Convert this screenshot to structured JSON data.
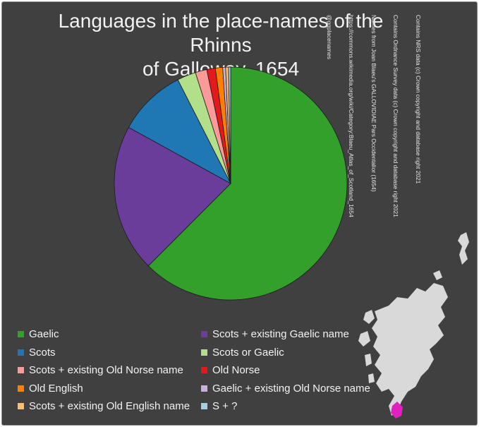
{
  "chart_data": {
    "type": "pie",
    "title": "Languages in the place-names of the Rhinns of Galloway, 1654",
    "start_angle_deg": 0,
    "legend_position": "bottom",
    "series": [
      {
        "name": "Gaelic",
        "value": 62.5,
        "color": "#33a02c"
      },
      {
        "name": "Scots + existing Gaelic name",
        "value": 20.5,
        "color": "#6a3d9a"
      },
      {
        "name": "Scots",
        "value": 9.5,
        "color": "#1f78b4"
      },
      {
        "name": "Scots or Gaelic",
        "value": 2.6,
        "color": "#b2df8a"
      },
      {
        "name": "Scots + existing Old Norse name",
        "value": 1.6,
        "color": "#fb9a99"
      },
      {
        "name": "Old Norse",
        "value": 1.2,
        "color": "#e31a1c"
      },
      {
        "name": "Old English",
        "value": 1.0,
        "color": "#ff7f00"
      },
      {
        "name": "Gaelic + existing Old Norse name",
        "value": 0.4,
        "color": "#cab2d6"
      },
      {
        "name": "Scots + existing Old English name",
        "value": 0.4,
        "color": "#fdbf6f"
      },
      {
        "name": "S + ?",
        "value": 0.3,
        "color": "#a6cee3"
      }
    ]
  },
  "title": "Languages in the place-names of the Rhinns of Galloway, 1654",
  "credits": [
    "Contains NRS data (c) Crown copyright and database right 2021",
    "Contains Ordnance Survey data (c) Crown copyright and database right 2021",
    "Names from Joan Blaeu's GALLOVIDIAE Pars Occidentalior (1654)",
    "https://commons.wikimedia.org/wiki/Category:Blaeu_Atlas_of_Scotland_1654",
    "@ggplacenames"
  ],
  "map": {
    "land_color": "#d9d9d9",
    "highlight_color": "#e020c0"
  }
}
